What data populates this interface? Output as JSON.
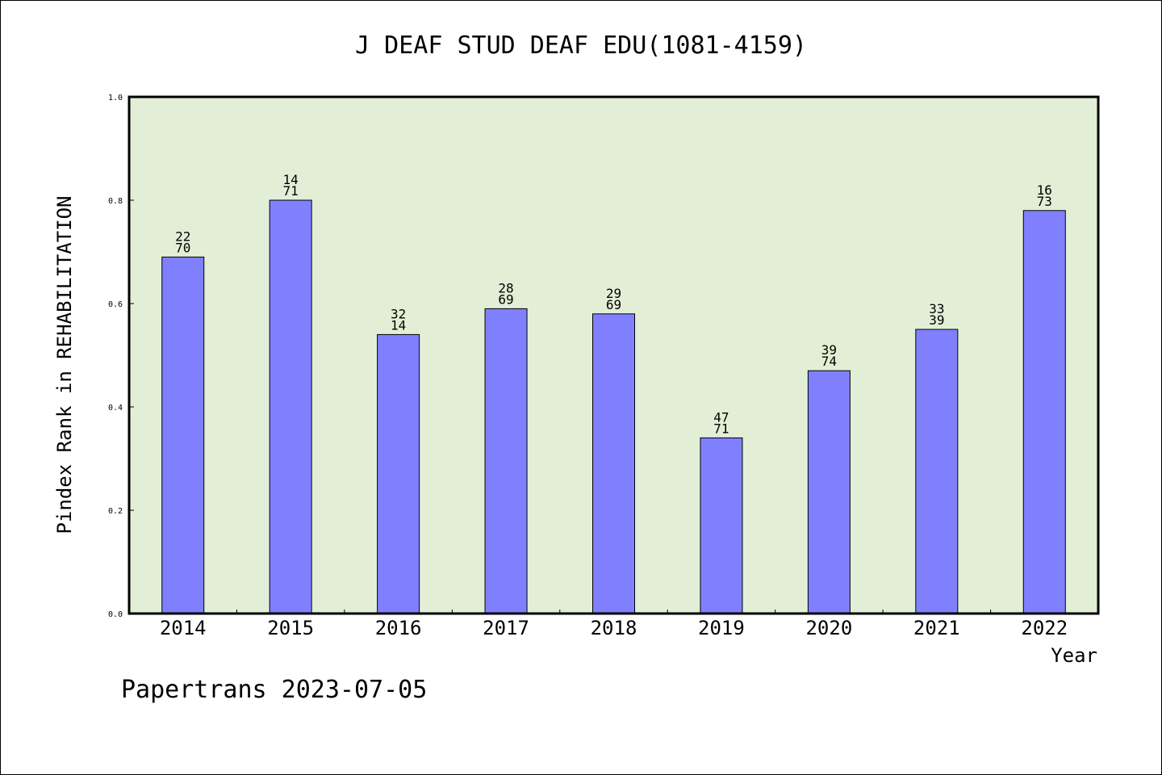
{
  "chart_data": {
    "type": "bar",
    "title": "J DEAF STUD DEAF EDU(1081-4159)",
    "xlabel": "Year",
    "ylabel": "Pindex Rank in REHABILITATION",
    "categories": [
      "2014",
      "2015",
      "2016",
      "2017",
      "2018",
      "2019",
      "2020",
      "2021",
      "2022"
    ],
    "values": [
      0.69,
      0.8,
      0.54,
      0.59,
      0.58,
      0.34,
      0.47,
      0.55,
      0.78
    ],
    "labels_top": [
      "22",
      "14",
      "32",
      "28",
      "29",
      "47",
      "39",
      "33",
      "16"
    ],
    "labels_bottom": [
      "70",
      "71",
      "14",
      "69",
      "69",
      "71",
      "74",
      "39",
      "73"
    ],
    "ylim": [
      0,
      1.0
    ],
    "yticks": [
      "0.0",
      "0.2",
      "0.4",
      "0.6",
      "0.8",
      "1.0"
    ],
    "grid": false,
    "colors": {
      "plot_background": "#e2efd6",
      "bar_fill": "#8080ff",
      "bar_stroke": "#000000"
    }
  },
  "footer": "Papertrans 2023-07-05"
}
